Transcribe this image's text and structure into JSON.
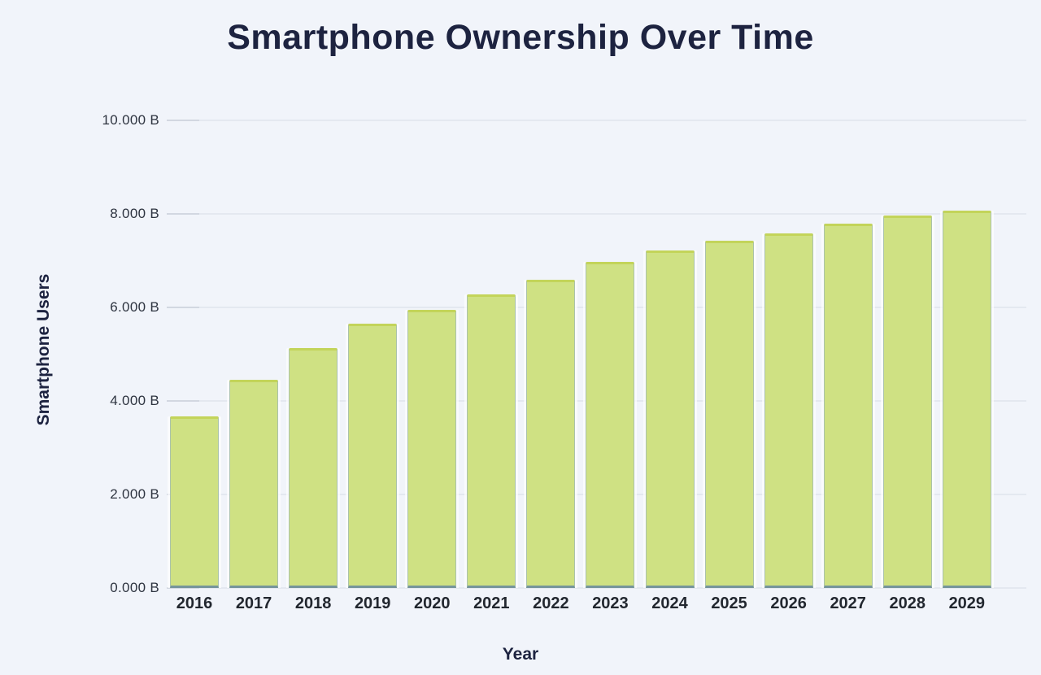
{
  "title": "Smartphone Ownership Over Time",
  "axes": {
    "x_title": "Year",
    "y_title": "Smartphone Users"
  },
  "chart_data": {
    "type": "bar",
    "title": "Smartphone Ownership Over Time",
    "xlabel": "Year",
    "ylabel": "Smartphone Users",
    "unit": "billions",
    "categories": [
      "2016",
      "2017",
      "2018",
      "2019",
      "2020",
      "2021",
      "2022",
      "2023",
      "2024",
      "2025",
      "2026",
      "2027",
      "2028",
      "2029"
    ],
    "values": [
      3.67,
      4.45,
      5.13,
      5.65,
      5.95,
      6.27,
      6.6,
      6.97,
      7.21,
      7.42,
      7.59,
      7.8,
      7.97,
      8.07
    ],
    "ylim": [
      0,
      10
    ],
    "y_ticks": [
      {
        "value": 0,
        "label": "0.000 B"
      },
      {
        "value": 2,
        "label": "2.000 B"
      },
      {
        "value": 4,
        "label": "4.000 B"
      },
      {
        "value": 6,
        "label": "6.000 B"
      },
      {
        "value": 8,
        "label": "8.000 B"
      },
      {
        "value": 10,
        "label": "10.000 B"
      }
    ],
    "grid": true,
    "legend": false,
    "colors": {
      "background": "#f1f4fa",
      "bar_fill": "#cfe183",
      "bar_top_border": "#c3d45a",
      "bar_side_border": "#8caacd",
      "bar_bottom_accent": "#2f58b0",
      "gridline": "#e4e8f0",
      "title_text": "#1d2340",
      "tick_text": "#2e3440"
    }
  }
}
